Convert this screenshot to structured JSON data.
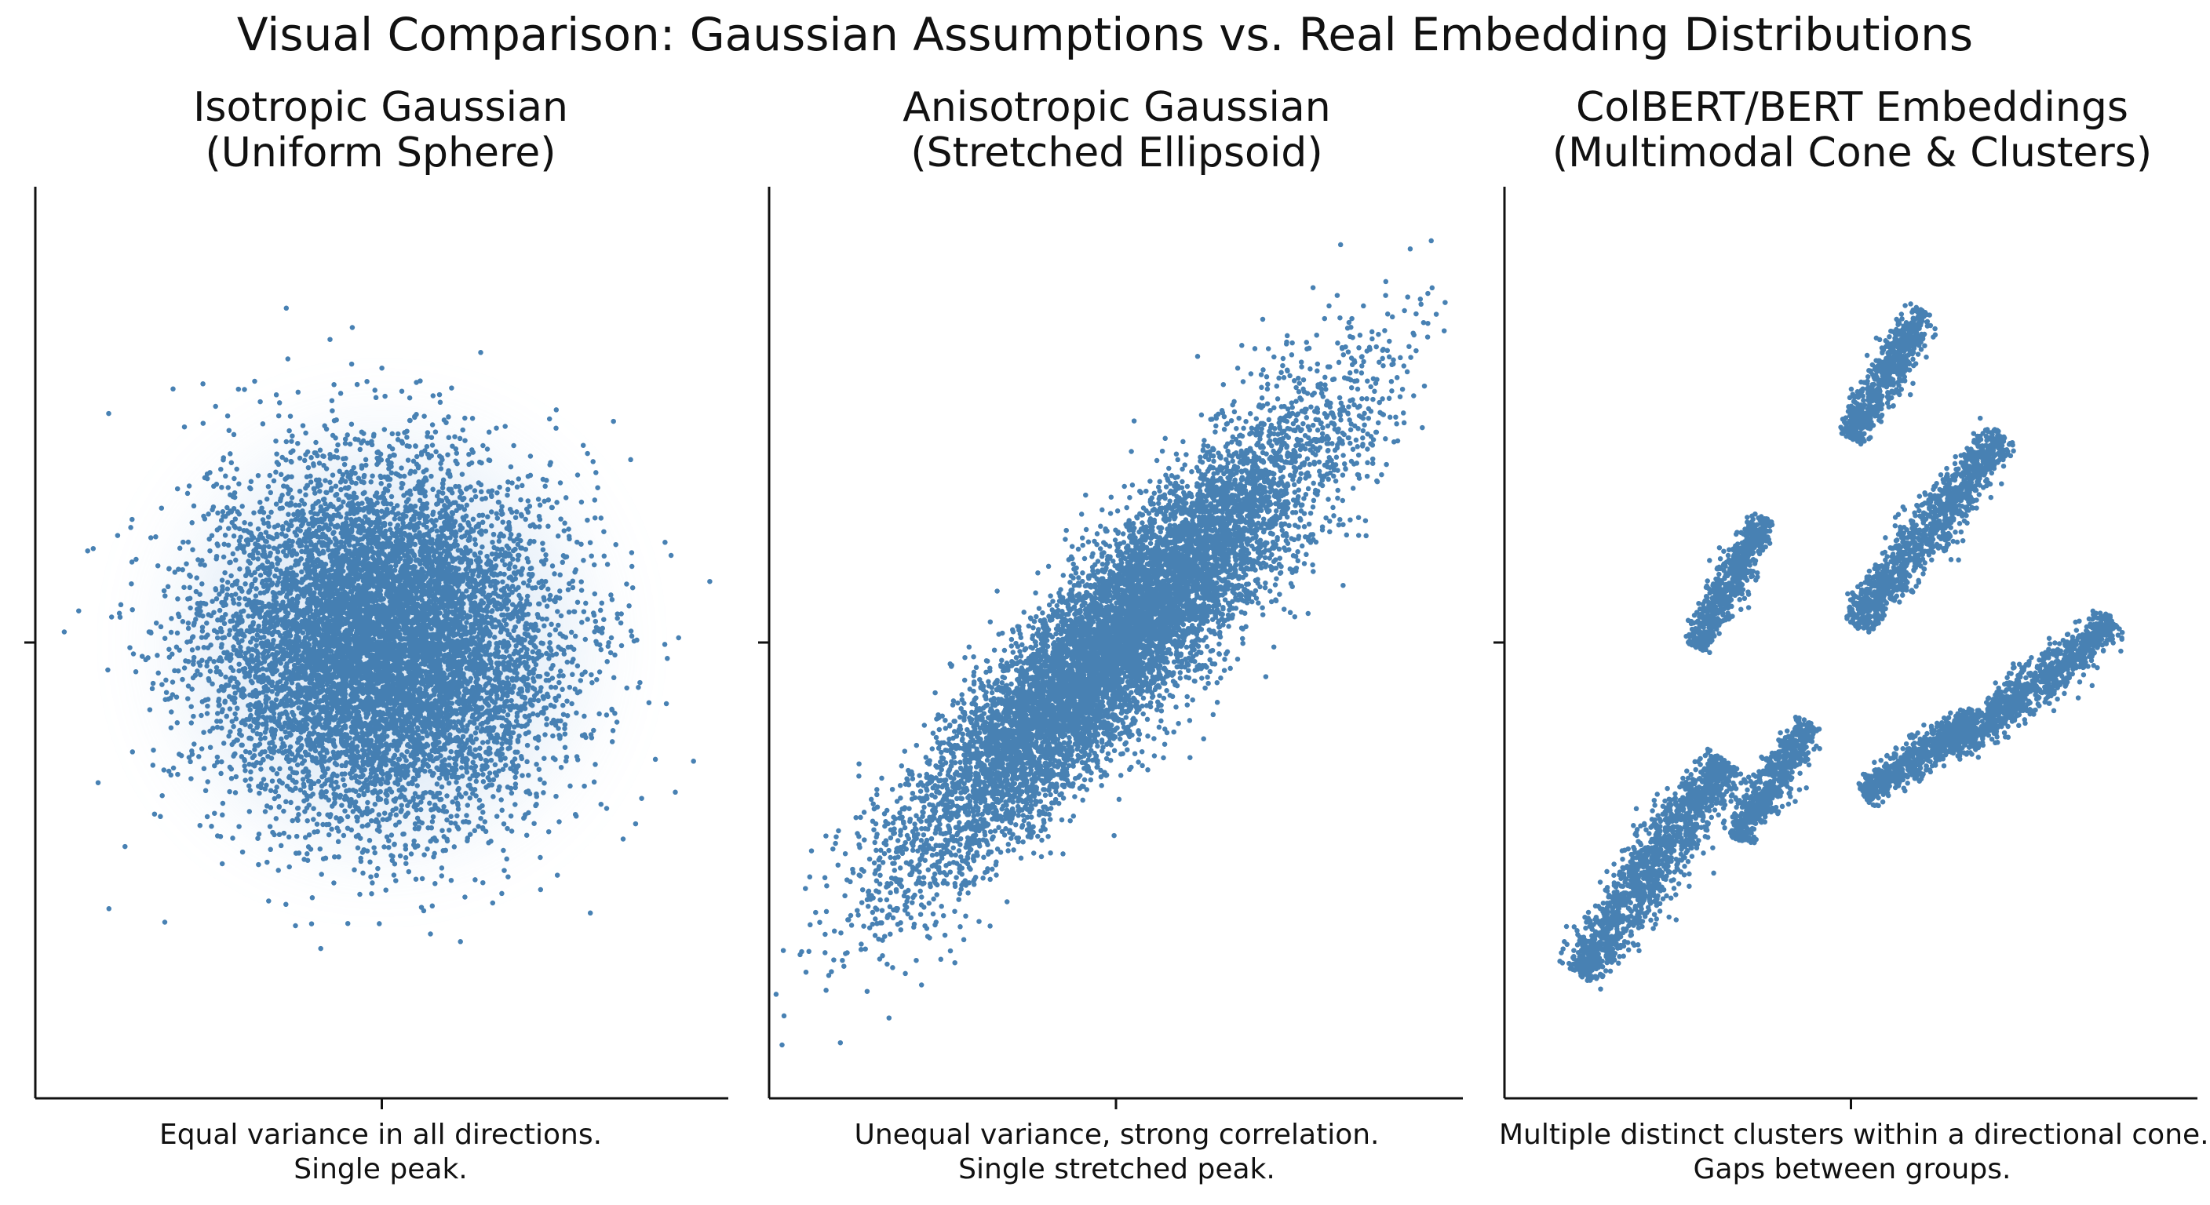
{
  "figure": {
    "title": "Visual Comparison: Gaussian Assumptions vs. Real Embedding Distributions"
  },
  "colors": {
    "point": "#2f6fa9",
    "halo": "#a9c8e8",
    "axis": "#111111",
    "background": "#ffffff"
  },
  "chart_data": [
    {
      "type": "scatter",
      "title_lines": [
        "Isotropic Gaussian",
        "(Uniform Sphere)"
      ],
      "caption_lines": [
        "Equal variance in all directions.",
        "Single peak."
      ],
      "xlabel": "",
      "ylabel": "",
      "xlim": [
        -4,
        4
      ],
      "ylim": [
        -4,
        4
      ],
      "grid": false,
      "distribution": {
        "kind": "gaussian",
        "mean": [
          0,
          0
        ],
        "std": [
          1,
          1
        ],
        "correlation": 0.0,
        "n_points": 9000
      }
    },
    {
      "type": "scatter",
      "title_lines": [
        "Anisotropic Gaussian",
        "(Stretched Ellipsoid)"
      ],
      "caption_lines": [
        "Unequal variance, strong correlation.",
        "Single stretched peak."
      ],
      "xlabel": "",
      "ylabel": "",
      "xlim": [
        -4,
        4
      ],
      "ylim": [
        -4,
        4
      ],
      "grid": false,
      "distribution": {
        "kind": "gaussian",
        "mean": [
          0,
          0
        ],
        "std": [
          1.25,
          1.35
        ],
        "correlation": 0.9,
        "n_points": 9000
      }
    },
    {
      "type": "scatter",
      "title_lines": [
        "ColBERT/BERT Embeddings",
        "(Multimodal Cone & Clusters)"
      ],
      "caption_lines": [
        "Multiple distinct clusters within a directional cone.",
        "Gaps between groups."
      ],
      "xlabel": "",
      "ylabel": "",
      "xlim": [
        -4,
        4
      ],
      "ylim": [
        -4,
        4
      ],
      "grid": false,
      "distribution": {
        "kind": "mixture",
        "clusters": [
          {
            "center": [
              -2.3,
              -2.6
            ],
            "length": 3.0,
            "width": 0.42,
            "angle_deg": 55,
            "n_points": 1500
          },
          {
            "center": [
              -0.9,
              -1.6
            ],
            "length": 1.6,
            "width": 0.26,
            "angle_deg": 58,
            "n_points": 700
          },
          {
            "center": [
              0.8,
              -1.3
            ],
            "length": 1.6,
            "width": 0.26,
            "angle_deg": 35,
            "n_points": 700
          },
          {
            "center": [
              2.1,
              -0.5
            ],
            "length": 2.4,
            "width": 0.3,
            "angle_deg": 38,
            "n_points": 1000
          },
          {
            "center": [
              -1.4,
              0.7
            ],
            "length": 1.7,
            "width": 0.26,
            "angle_deg": 62,
            "n_points": 700
          },
          {
            "center": [
              0.9,
              1.3
            ],
            "length": 2.8,
            "width": 0.33,
            "angle_deg": 52,
            "n_points": 1200
          },
          {
            "center": [
              0.4,
              3.1
            ],
            "length": 1.7,
            "width": 0.28,
            "angle_deg": 60,
            "n_points": 700
          }
        ]
      }
    }
  ]
}
